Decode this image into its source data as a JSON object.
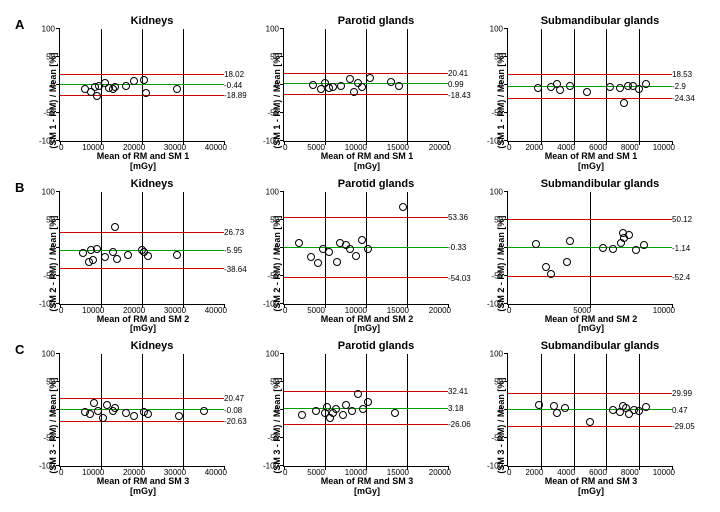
{
  "rows": [
    "A",
    "B",
    "C"
  ],
  "rowLabels": {
    "A": {
      "yl": "(SM 1 - RM) / Mean [%]",
      "xl": "Mean of RM and SM 1\n[mGy]"
    },
    "B": {
      "yl": "(SM 2 - RM) / Mean [%]",
      "xl": "Mean of RM and SM 2\n[mGy]"
    },
    "C": {
      "yl": "(SM 3 - RM) / Mean [%]",
      "xl": "Mean of RM and SM 3\n[mGy]"
    }
  },
  "cols": [
    "Kidneys",
    "Parotid glands",
    "Submandibular glands"
  ],
  "ylim": [
    -100,
    100
  ],
  "yticks": [
    -100,
    -50,
    0,
    50,
    100
  ],
  "colors": {
    "mean": "#00a000",
    "loa": "#d00000",
    "marker": "#000000",
    "bg": "#ffffff"
  },
  "marker": {
    "style": "circle",
    "size": 6,
    "fill": "none",
    "stroke": "#000",
    "stroke_width": 1
  },
  "font": {
    "title": 11,
    "axis": 9,
    "tick": 8,
    "annot": 8,
    "family": "Arial",
    "weight_title": "bold"
  },
  "plots": {
    "A_Kidneys": {
      "xlim": [
        0,
        40000
      ],
      "xticks": [
        0,
        10000,
        20000,
        30000,
        40000
      ],
      "vgrid": [
        10000,
        20000,
        30000
      ],
      "lines": {
        "upper": 18.02,
        "mean": -0.44,
        "lower": -18.89
      },
      "points": [
        [
          6000,
          -8
        ],
        [
          7500,
          -13
        ],
        [
          8500,
          -3
        ],
        [
          9000,
          -20
        ],
        [
          9500,
          -2
        ],
        [
          11000,
          3
        ],
        [
          12000,
          -6
        ],
        [
          13000,
          -7
        ],
        [
          13500,
          -4
        ],
        [
          16000,
          -1
        ],
        [
          18000,
          7
        ],
        [
          20500,
          8
        ],
        [
          21000,
          -14
        ],
        [
          28500,
          -8
        ]
      ]
    },
    "A_Parotid glands": {
      "xlim": [
        0,
        20000
      ],
      "xticks": [
        0,
        5000,
        10000,
        15000,
        20000
      ],
      "vgrid": [
        5000,
        10000,
        15000
      ],
      "lines": {
        "upper": 20.41,
        "mean": 0.99,
        "lower": -18.43
      },
      "points": [
        [
          3500,
          0
        ],
        [
          4500,
          -7
        ],
        [
          5000,
          3
        ],
        [
          5500,
          -5
        ],
        [
          6000,
          -3
        ],
        [
          7000,
          -1
        ],
        [
          8000,
          10
        ],
        [
          8500,
          -13
        ],
        [
          9000,
          4
        ],
        [
          9500,
          -3
        ],
        [
          10500,
          13
        ],
        [
          13000,
          5
        ],
        [
          14000,
          -2
        ]
      ]
    },
    "A_Submandibular glands": {
      "xlim": [
        0,
        10000
      ],
      "xticks": [
        0,
        2000,
        4000,
        6000,
        8000,
        10000
      ],
      "vgrid": [
        2000,
        4000,
        6000,
        8000
      ],
      "lines": {
        "upper": 18.53,
        "mean": -2.9,
        "lower": -24.34
      },
      "points": [
        [
          1800,
          -6
        ],
        [
          2600,
          -3
        ],
        [
          3000,
          1
        ],
        [
          3200,
          -9
        ],
        [
          3800,
          -1
        ],
        [
          4800,
          -12
        ],
        [
          6200,
          -3
        ],
        [
          6800,
          -5
        ],
        [
          7100,
          -33
        ],
        [
          7300,
          -2
        ],
        [
          7600,
          -1
        ],
        [
          8000,
          -7
        ],
        [
          8400,
          2
        ]
      ]
    },
    "B_Kidneys": {
      "xlim": [
        0,
        40000
      ],
      "xticks": [
        0,
        10000,
        20000,
        30000,
        40000
      ],
      "vgrid": [
        10000,
        20000,
        30000
      ],
      "lines": {
        "upper": 26.73,
        "mean": -5.95,
        "lower": -38.64
      },
      "points": [
        [
          5500,
          -10
        ],
        [
          7000,
          -26
        ],
        [
          7500,
          -5
        ],
        [
          8000,
          -23
        ],
        [
          9000,
          -2
        ],
        [
          11000,
          -17
        ],
        [
          13000,
          -8
        ],
        [
          13500,
          37
        ],
        [
          14000,
          -20
        ],
        [
          16500,
          -13
        ],
        [
          20000,
          -4
        ],
        [
          20500,
          -7
        ],
        [
          21500,
          -15
        ],
        [
          28500,
          -14
        ]
      ]
    },
    "B_Parotid glands": {
      "xlim": [
        0,
        20000
      ],
      "xticks": [
        0,
        5000,
        10000,
        15000,
        20000
      ],
      "vgrid": [
        5000,
        10000,
        15000
      ],
      "lines": {
        "upper": 53.36,
        "mean": -0.33,
        "lower": -54.03
      },
      "points": [
        [
          1800,
          8
        ],
        [
          3300,
          -17
        ],
        [
          4200,
          -28
        ],
        [
          4800,
          -3
        ],
        [
          5500,
          -8
        ],
        [
          6500,
          -26
        ],
        [
          6800,
          9
        ],
        [
          7500,
          4
        ],
        [
          8000,
          -3
        ],
        [
          8800,
          -15
        ],
        [
          9500,
          14
        ],
        [
          10200,
          -2
        ],
        [
          14500,
          73
        ]
      ]
    },
    "B_Submandibular glands": {
      "xlim": [
        0,
        10000
      ],
      "xticks": [
        0,
        5000,
        10000
      ],
      "vgrid": [
        5000
      ],
      "lines": {
        "upper": 50.12,
        "mean": -1.14,
        "lower": -52.4
      },
      "points": [
        [
          1700,
          7
        ],
        [
          2300,
          -35
        ],
        [
          2600,
          -47
        ],
        [
          3600,
          -26
        ],
        [
          3800,
          12
        ],
        [
          5800,
          0
        ],
        [
          6400,
          -2
        ],
        [
          6900,
          8
        ],
        [
          7000,
          26
        ],
        [
          7100,
          18
        ],
        [
          7400,
          22
        ],
        [
          7800,
          -4
        ],
        [
          8300,
          4
        ]
      ]
    },
    "C_Kidneys": {
      "xlim": [
        0,
        40000
      ],
      "xticks": [
        0,
        10000,
        20000,
        30000,
        40000
      ],
      "vgrid": [
        10000,
        20000,
        30000
      ],
      "lines": {
        "upper": 20.47,
        "mean": -0.08,
        "lower": -20.63
      },
      "points": [
        [
          6000,
          -3
        ],
        [
          7200,
          -6
        ],
        [
          8200,
          13
        ],
        [
          9200,
          -2
        ],
        [
          10500,
          -13
        ],
        [
          11500,
          10
        ],
        [
          13000,
          -2
        ],
        [
          13500,
          4
        ],
        [
          16000,
          -5
        ],
        [
          18000,
          -11
        ],
        [
          20500,
          -3
        ],
        [
          21500,
          -6
        ],
        [
          29000,
          -10
        ],
        [
          35000,
          -2
        ]
      ]
    },
    "C_Parotid glands": {
      "xlim": [
        0,
        20000
      ],
      "xticks": [
        0,
        5000,
        10000,
        15000,
        20000
      ],
      "vgrid": [
        5000,
        10000,
        15000
      ],
      "lines": {
        "upper": 32.41,
        "mean": 3.18,
        "lower": -26.06
      },
      "points": [
        [
          2200,
          -9
        ],
        [
          3900,
          -2
        ],
        [
          5000,
          -5
        ],
        [
          5300,
          6
        ],
        [
          5600,
          -14
        ],
        [
          6000,
          -5
        ],
        [
          6400,
          3
        ],
        [
          7200,
          -8
        ],
        [
          7600,
          10
        ],
        [
          8300,
          -2
        ],
        [
          9000,
          29
        ],
        [
          9600,
          3
        ],
        [
          10200,
          14
        ],
        [
          13500,
          -4
        ]
      ]
    },
    "C_Submandibular glands": {
      "xlim": [
        0,
        10000
      ],
      "xticks": [
        0,
        2000,
        4000,
        6000,
        8000,
        10000
      ],
      "vgrid": [
        2000,
        4000,
        6000,
        8000
      ],
      "lines": {
        "upper": 29.99,
        "mean": 0.47,
        "lower": -29.05
      },
      "points": [
        [
          1900,
          9
        ],
        [
          2800,
          8
        ],
        [
          3000,
          -5
        ],
        [
          3500,
          4
        ],
        [
          5000,
          -21
        ],
        [
          6400,
          1
        ],
        [
          6800,
          -3
        ],
        [
          7000,
          8
        ],
        [
          7200,
          4
        ],
        [
          7400,
          -7
        ],
        [
          7700,
          1
        ],
        [
          8000,
          -2
        ],
        [
          8400,
          6
        ]
      ]
    }
  }
}
